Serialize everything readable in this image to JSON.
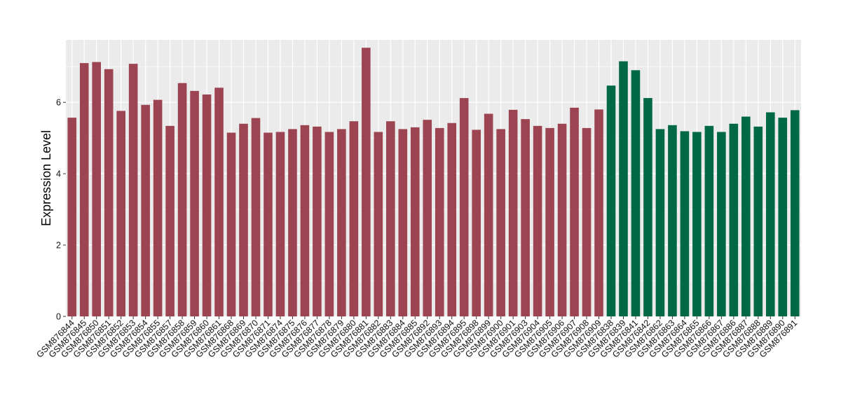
{
  "chart_data": {
    "type": "bar",
    "ylabel": "Expression Level",
    "xlabel": "",
    "ylim": [
      0,
      7.75
    ],
    "yticks": [
      0,
      2,
      4,
      6
    ],
    "grid": true,
    "legend": "none",
    "colors": {
      "group1": "#9c4451",
      "group2": "#006844",
      "panel": "#ebebeb",
      "grid": "#ffffff"
    },
    "categories": [
      "GSM876844",
      "GSM876845",
      "GSM876850",
      "GSM876851",
      "GSM876852",
      "GSM876853",
      "GSM876854",
      "GSM876855",
      "GSM876857",
      "GSM876858",
      "GSM876859",
      "GSM876860",
      "GSM876861",
      "GSM876868",
      "GSM876869",
      "GSM876870",
      "GSM876871",
      "GSM876874",
      "GSM876875",
      "GSM876876",
      "GSM876877",
      "GSM876878",
      "GSM876879",
      "GSM876880",
      "GSM876881",
      "GSM876882",
      "GSM876883",
      "GSM876884",
      "GSM876885",
      "GSM876892",
      "GSM876893",
      "GSM876894",
      "GSM876895",
      "GSM876898",
      "GSM876899",
      "GSM876900",
      "GSM876901",
      "GSM876903",
      "GSM876904",
      "GSM876905",
      "GSM876906",
      "GSM876907",
      "GSM876908",
      "GSM876909",
      "GSM876838",
      "GSM876839",
      "GSM876841",
      "GSM876842",
      "GSM876862",
      "GSM876863",
      "GSM876864",
      "GSM876865",
      "GSM876866",
      "GSM876867",
      "GSM876886",
      "GSM876887",
      "GSM876888",
      "GSM876889",
      "GSM876890",
      "GSM876891"
    ],
    "values": [
      5.57,
      7.1,
      7.13,
      6.93,
      5.76,
      7.08,
      5.93,
      6.07,
      5.34,
      6.54,
      6.32,
      6.22,
      6.41,
      5.15,
      5.4,
      5.56,
      5.15,
      5.17,
      5.25,
      5.36,
      5.32,
      5.17,
      5.25,
      5.47,
      7.53,
      5.17,
      5.47,
      5.25,
      5.3,
      5.51,
      5.28,
      5.42,
      6.12,
      5.23,
      5.68,
      5.25,
      5.79,
      5.53,
      5.34,
      5.28,
      5.4,
      5.85,
      5.28,
      5.8,
      6.47,
      7.15,
      6.9,
      6.12,
      5.25,
      5.36,
      5.19,
      5.17,
      5.34,
      5.17,
      5.4,
      5.6,
      5.32,
      5.72,
      5.57,
      5.78
    ],
    "groups": [
      "group1",
      "group1",
      "group1",
      "group1",
      "group1",
      "group1",
      "group1",
      "group1",
      "group1",
      "group1",
      "group1",
      "group1",
      "group1",
      "group1",
      "group1",
      "group1",
      "group1",
      "group1",
      "group1",
      "group1",
      "group1",
      "group1",
      "group1",
      "group1",
      "group1",
      "group1",
      "group1",
      "group1",
      "group1",
      "group1",
      "group1",
      "group1",
      "group1",
      "group1",
      "group1",
      "group1",
      "group1",
      "group1",
      "group1",
      "group1",
      "group1",
      "group1",
      "group1",
      "group1",
      "group2",
      "group2",
      "group2",
      "group2",
      "group2",
      "group2",
      "group2",
      "group2",
      "group2",
      "group2",
      "group2",
      "group2",
      "group2",
      "group2",
      "group2",
      "group2"
    ]
  }
}
